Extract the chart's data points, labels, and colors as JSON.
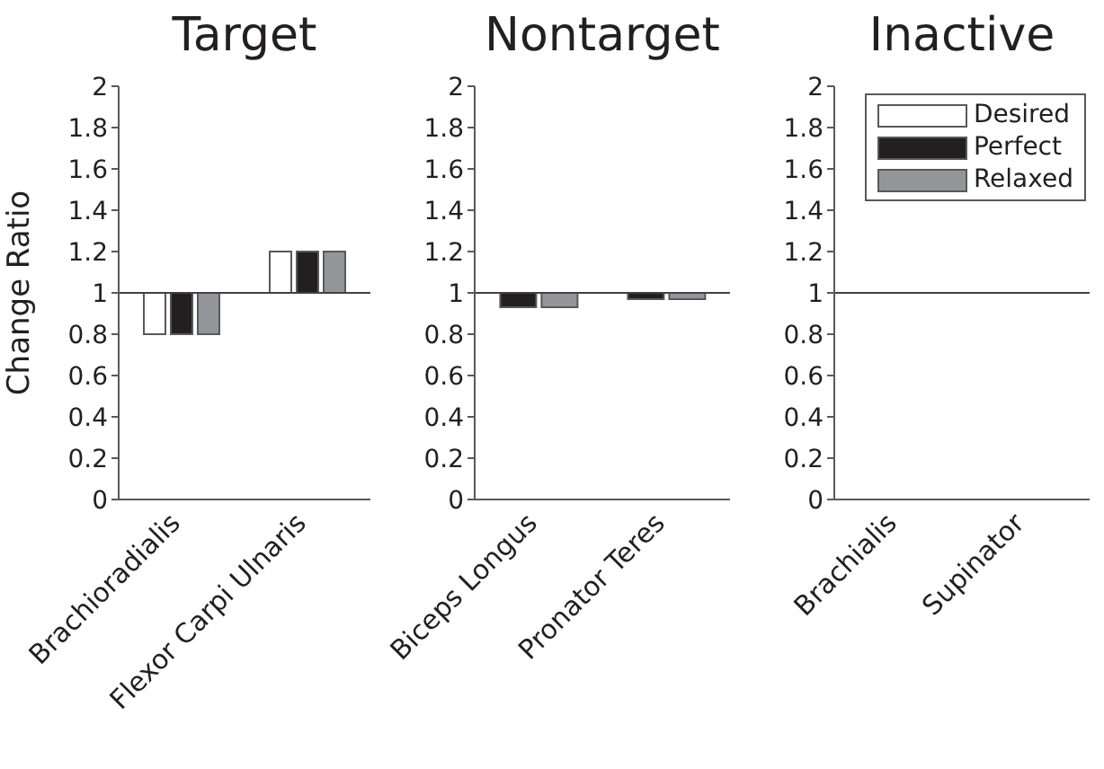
{
  "chart_data": [
    {
      "type": "bar",
      "title": "Target",
      "ylabel": "Change Ratio",
      "categories": [
        "Brachioradialis",
        "Flexor Carpi Ulnaris"
      ],
      "ylim": [
        0,
        2
      ],
      "yticks": [
        0,
        0.2,
        0.4,
        0.6,
        0.8,
        1,
        1.2,
        1.4,
        1.6,
        1.8,
        2
      ],
      "ref_lines": [
        {
          "axis": "y",
          "value": 1
        }
      ],
      "series": [
        {
          "color": "#ffffff",
          "values": [
            -0.2,
            0.2
          ],
          "base": [
            1,
            1
          ]
        },
        {
          "color": "#231f20",
          "values": [
            -0.2,
            0.2
          ],
          "base": [
            1,
            1
          ]
        },
        {
          "color": "#939598",
          "values": [
            -0.2,
            0.2
          ],
          "base": [
            1,
            1
          ]
        }
      ]
    },
    {
      "type": "bar",
      "title": "Nontarget",
      "categories": [
        "Biceps Longus",
        "Pronator Teres"
      ],
      "ylim": [
        0,
        2
      ],
      "yticks": [
        0,
        0.2,
        0.4,
        0.6,
        0.8,
        1,
        1.2,
        1.4,
        1.6,
        1.8,
        2
      ],
      "ref_lines": [
        {
          "axis": "y",
          "value": 1
        }
      ],
      "series": [
        {
          "color": "#231f20",
          "values": [
            -0.07,
            -0.03
          ],
          "base": [
            1,
            1
          ]
        },
        {
          "color": "#939598",
          "values": [
            -0.07,
            -0.03
          ],
          "base": [
            1,
            1
          ]
        }
      ]
    },
    {
      "type": "bar",
      "title": "Inactive",
      "categories": [
        "Brachialis",
        "Supinator"
      ],
      "ylim": [
        0,
        2
      ],
      "yticks": [
        0,
        0.2,
        0.4,
        0.6,
        0.8,
        1,
        1.2,
        1.4,
        1.6,
        1.8,
        2
      ],
      "ref_lines": [
        {
          "axis": "y",
          "value": 1
        }
      ],
      "legend": "top right",
      "series": [
        {
          "name": "Desired",
          "color": "#ffffff",
          "values": [
            null,
            null
          ]
        },
        {
          "name": "Perfect",
          "color": "#231f20",
          "values": [
            null,
            null
          ]
        },
        {
          "name": "Relaxed",
          "color": "#939598",
          "values": [
            null,
            null
          ]
        }
      ]
    }
  ]
}
